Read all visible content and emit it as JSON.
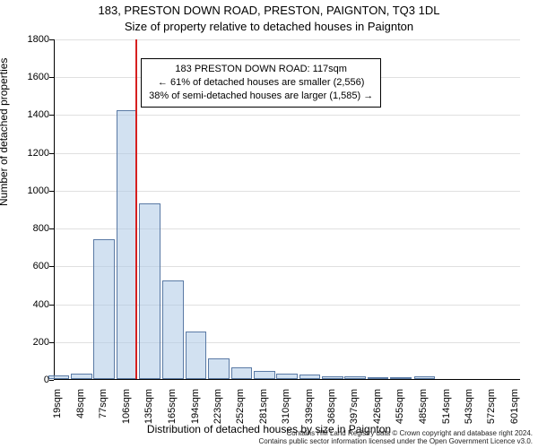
{
  "title": "183, PRESTON DOWN ROAD, PRESTON, PAIGNTON, TQ3 1DL",
  "subtitle": "Size of property relative to detached houses in Paignton",
  "ylabel": "Number of detached properties",
  "xlabel": "Distribution of detached houses by size in Paignton",
  "footer_line1": "Contains HM Land Registry data © Crown copyright and database right 2024.",
  "footer_line2": "Contains public sector information licensed under the Open Government Licence v3.0.",
  "annotation": {
    "line1": "183 PRESTON DOWN ROAD: 117sqm",
    "line2": "← 61% of detached houses are smaller (2,556)",
    "line3": "38% of semi-detached houses are larger (1,585) →"
  },
  "chart": {
    "type": "histogram",
    "background_color": "#ffffff",
    "grid_color": "#e0e0e0",
    "axis_color": "#000000",
    "bar_fill": "rgba(173,200,230,0.55)",
    "bar_border": "#5a7aa5",
    "ref_line_color": "#d62020",
    "ref_line_x": 117,
    "title_fontsize": 13,
    "label_fontsize": 12,
    "tick_fontsize": 11,
    "annotation_fontsize": 11,
    "ylim": [
      0,
      1800
    ],
    "ytick_step": 200,
    "xlim": [
      14,
      608
    ],
    "xtick_labels": [
      "19sqm",
      "48sqm",
      "77sqm",
      "106sqm",
      "135sqm",
      "165sqm",
      "194sqm",
      "223sqm",
      "252sqm",
      "281sqm",
      "310sqm",
      "339sqm",
      "368sqm",
      "397sqm",
      "426sqm",
      "455sqm",
      "485sqm",
      "514sqm",
      "543sqm",
      "572sqm",
      "601sqm"
    ],
    "xtick_centers": [
      19,
      48,
      77,
      106,
      135,
      165,
      194,
      223,
      252,
      281,
      310,
      339,
      368,
      397,
      426,
      455,
      485,
      514,
      543,
      572,
      601
    ],
    "bar_width_sqm": 27,
    "bars": [
      {
        "center": 19,
        "value": 20
      },
      {
        "center": 48,
        "value": 30
      },
      {
        "center": 77,
        "value": 740
      },
      {
        "center": 106,
        "value": 1420
      },
      {
        "center": 135,
        "value": 930
      },
      {
        "center": 165,
        "value": 520
      },
      {
        "center": 194,
        "value": 250
      },
      {
        "center": 223,
        "value": 110
      },
      {
        "center": 252,
        "value": 60
      },
      {
        "center": 281,
        "value": 45
      },
      {
        "center": 310,
        "value": 30
      },
      {
        "center": 339,
        "value": 22
      },
      {
        "center": 368,
        "value": 12
      },
      {
        "center": 397,
        "value": 15
      },
      {
        "center": 426,
        "value": 8
      },
      {
        "center": 455,
        "value": 8
      },
      {
        "center": 485,
        "value": 12
      },
      {
        "center": 514,
        "value": 0
      },
      {
        "center": 543,
        "value": 0
      },
      {
        "center": 572,
        "value": 0
      },
      {
        "center": 601,
        "value": 0
      }
    ]
  }
}
